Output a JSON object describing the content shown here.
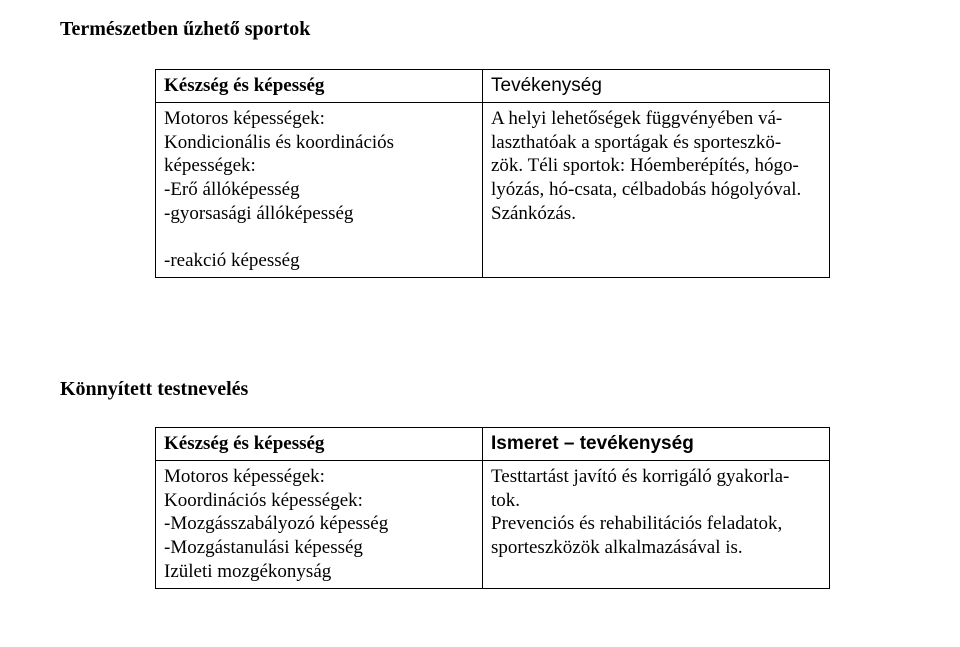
{
  "section1": {
    "title": "Természetben űzhető sportok",
    "table": {
      "header": {
        "left": "Készség és képesség",
        "right": "Tevékenység"
      },
      "row": {
        "left_lines": [
          "Motoros képességek:",
          "Kondicionális és koordinációs",
          "képességek:",
          "-Erő állóképesség",
          "-gyorsasági állóképesség",
          "",
          "-reakció képesség"
        ],
        "right_lines": [
          "A helyi lehetőségek függvényében vá-",
          "laszthatóak a sportágak és sporteszkö-",
          "zök. Téli sportok: Hóemberépítés, hógo-",
          "lyózás, hó-csata, célbadobás hógolyóval.",
          "Szánkózás."
        ]
      }
    }
  },
  "section2": {
    "title": "Könnyített testnevelés",
    "table": {
      "header": {
        "left": "Készség és képesség",
        "right": "Ismeret – tevékenység"
      },
      "row": {
        "left_lines": [
          "Motoros képességek:",
          "Koordinációs képességek:",
          "-Mozgásszabályozó képesség",
          "-Mozgástanulási képesség",
          "Izületi mozgékonyság"
        ],
        "right_lines": [
          "Testtartást javító és korrigáló gyakorla-",
          "tok.",
          "Prevenciós és rehabilitációs feladatok,",
          "sporteszközök alkalmazásával is."
        ]
      }
    }
  }
}
